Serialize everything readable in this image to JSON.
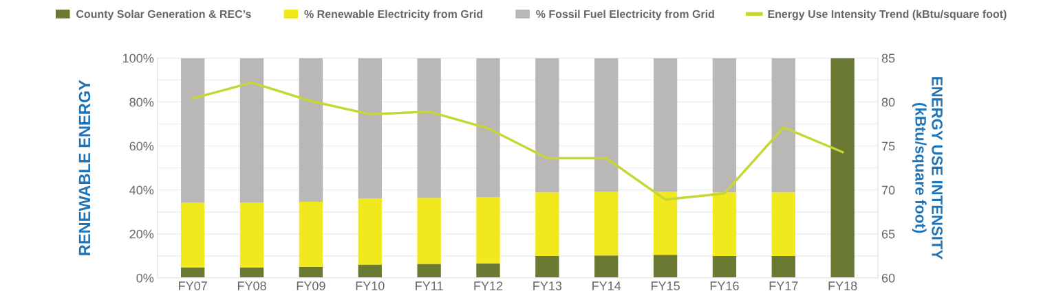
{
  "chart_data": {
    "type": "bar",
    "stacked": true,
    "categories": [
      "FY07",
      "FY08",
      "FY09",
      "FY10",
      "FY11",
      "FY12",
      "FY13",
      "FY14",
      "FY15",
      "FY16",
      "FY17",
      "FY18"
    ],
    "series": [
      {
        "name": "County Solar Generation & REC’s",
        "color": "#6b7a33",
        "values": [
          4.8,
          4.8,
          5.0,
          6.0,
          6.3,
          6.6,
          9.9,
          10.2,
          10.5,
          9.9,
          9.9,
          100
        ]
      },
      {
        "name": "% Renewable Electricity from Grid",
        "color": "#f2e81e",
        "values": [
          29.4,
          29.5,
          29.6,
          30.1,
          30.1,
          30.0,
          29.0,
          28.9,
          28.6,
          29.0,
          29.0,
          null
        ]
      },
      {
        "name": "% Fossil Fuel Electricity from Grid",
        "color": "#b9b8b6",
        "values": [
          65.8,
          65.7,
          65.4,
          63.9,
          63.6,
          63.4,
          61.1,
          60.9,
          60.9,
          61.1,
          61.1,
          null
        ]
      },
      {
        "name": "Energy Use Intensity Trend (kBtu/square foot)",
        "type": "line",
        "axis": "y2",
        "color": "#c6d634",
        "values": [
          80.4,
          82.2,
          80.1,
          78.6,
          78.9,
          77.0,
          73.6,
          73.6,
          68.9,
          69.6,
          77.1,
          74.3
        ]
      }
    ],
    "ylabel": "RENEWABLE ENERGY",
    "y2label": "ENERGY USE INTENSITY\n(kBtu/square foot)",
    "ylim": [
      0,
      100
    ],
    "yticks": [
      {
        "value": 0,
        "label": "0%"
      },
      {
        "value": 10,
        "label": null
      },
      {
        "value": 20,
        "label": "20%"
      },
      {
        "value": 30,
        "label": null
      },
      {
        "value": 40,
        "label": "40%"
      },
      {
        "value": 50,
        "label": null
      },
      {
        "value": 60,
        "label": "60%"
      },
      {
        "value": 70,
        "label": null
      },
      {
        "value": 80,
        "label": "80%"
      },
      {
        "value": 90,
        "label": null
      },
      {
        "value": 100,
        "label": "100%"
      }
    ],
    "y2lim": [
      60,
      85
    ],
    "y2ticks": [
      60,
      65,
      70,
      75,
      80,
      85
    ],
    "grid": "y",
    "legend": "top",
    "marker": "none",
    "line_style": "solid"
  }
}
